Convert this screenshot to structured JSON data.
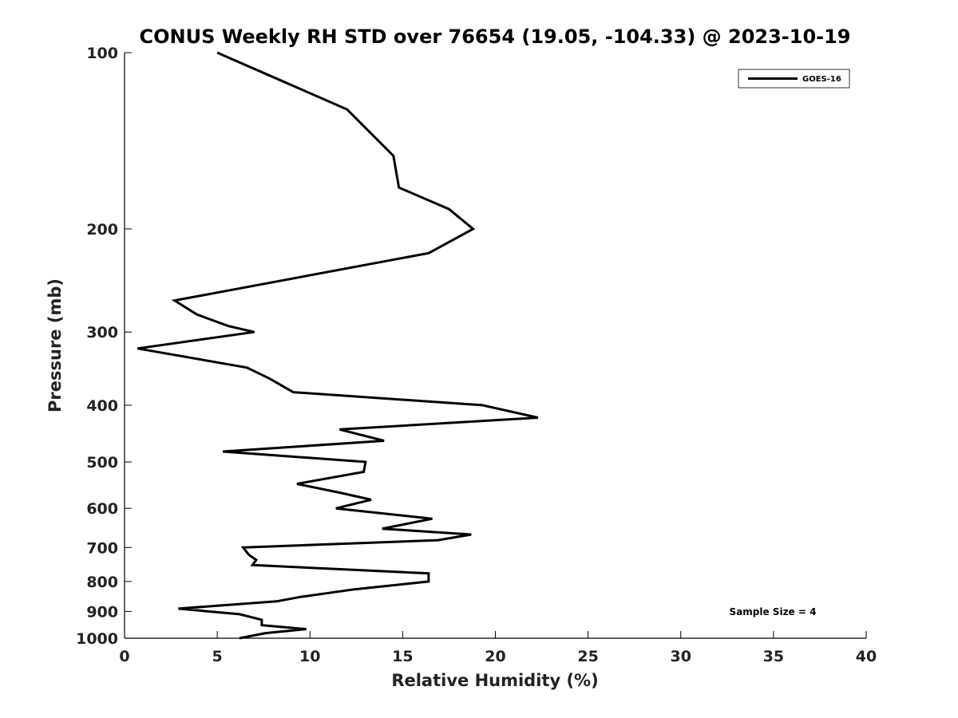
{
  "chart_data": {
    "type": "line",
    "title": "CONUS Weekly RH STD over 76654 (19.05, -104.33) @ 2023-10-19",
    "xlabel": "Relative Humidity (%)",
    "ylabel": "Pressure (mb)",
    "xlim": [
      0,
      40
    ],
    "ylim": [
      100,
      1000
    ],
    "y_scale": "log",
    "y_inverted": true,
    "x_ticks": [
      "0",
      "5",
      "10",
      "15",
      "20",
      "25",
      "30",
      "35",
      "40"
    ],
    "y_ticks": [
      "100",
      "200",
      "300",
      "400",
      "500",
      "600",
      "700",
      "800",
      "900",
      "1000"
    ],
    "grid": false,
    "legend_position": "top-right",
    "series": [
      {
        "name": "GOES-16",
        "color": "#000000",
        "points": [
          [
            5.0,
            100
          ],
          [
            12.0,
            125
          ],
          [
            14.5,
            150
          ],
          [
            14.8,
            170
          ],
          [
            17.5,
            185
          ],
          [
            18.8,
            200
          ],
          [
            16.4,
            220
          ],
          [
            2.7,
            265
          ],
          [
            3.9,
            280
          ],
          [
            5.6,
            293
          ],
          [
            7.0,
            300
          ],
          [
            0.7,
            320
          ],
          [
            6.6,
            345
          ],
          [
            7.8,
            360
          ],
          [
            9.1,
            380
          ],
          [
            19.3,
            400
          ],
          [
            22.3,
            420
          ],
          [
            11.6,
            440
          ],
          [
            14.0,
            460
          ],
          [
            5.3,
            480
          ],
          [
            13.0,
            500
          ],
          [
            12.9,
            520
          ],
          [
            9.3,
            545
          ],
          [
            11.7,
            565
          ],
          [
            13.3,
            580
          ],
          [
            11.4,
            600
          ],
          [
            16.6,
            625
          ],
          [
            13.9,
            650
          ],
          [
            18.7,
            665
          ],
          [
            16.9,
            680
          ],
          [
            6.4,
            700
          ],
          [
            6.7,
            720
          ],
          [
            7.1,
            735
          ],
          [
            6.9,
            750
          ],
          [
            16.4,
            775
          ],
          [
            16.4,
            800
          ],
          [
            12.4,
            825
          ],
          [
            9.5,
            850
          ],
          [
            8.2,
            865
          ],
          [
            2.9,
            890
          ],
          [
            6.2,
            910
          ],
          [
            7.4,
            930
          ],
          [
            7.4,
            950
          ],
          [
            9.8,
            965
          ],
          [
            7.6,
            980
          ],
          [
            6.2,
            1000
          ]
        ]
      }
    ],
    "annotation": "Sample Size = 4"
  }
}
